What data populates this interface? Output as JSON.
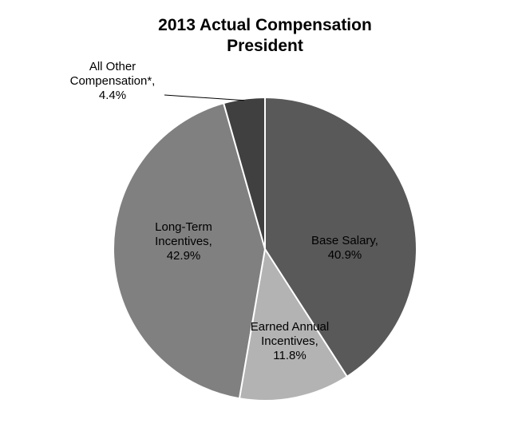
{
  "chart_data": {
    "type": "pie",
    "title": "2013 Actual Compensation",
    "subtitle": "President",
    "slices": [
      {
        "label_lines": [
          "Base Salary,",
          "40.9%"
        ],
        "name": "Base Salary",
        "value": 40.9,
        "color": "#595959"
      },
      {
        "label_lines": [
          "Earned Annual",
          "Incentives,",
          "11.8%"
        ],
        "name": "Earned Annual Incentives",
        "value": 11.8,
        "color": "#b3b3b3"
      },
      {
        "label_lines": [
          "Long-Term",
          "Incentives,",
          "42.9%"
        ],
        "name": "Long-Term Incentives",
        "value": 42.9,
        "color": "#808080"
      },
      {
        "label_lines": [
          "All Other",
          "Compensation*,",
          "4.4%"
        ],
        "name": "All Other Compensation*",
        "value": 4.4,
        "color": "#404040"
      }
    ],
    "start_angle": "12 o'clock",
    "direction": "clockwise",
    "legend": "none"
  }
}
